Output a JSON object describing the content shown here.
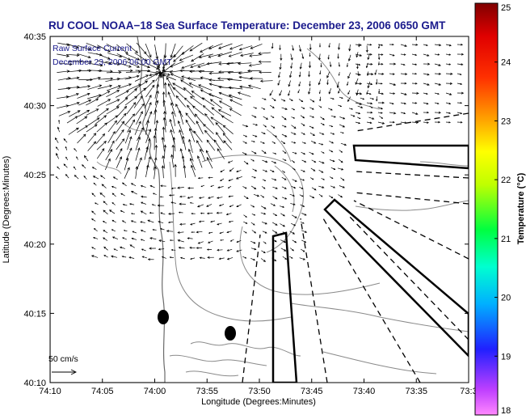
{
  "title": "RU COOL  NOAA−18  Sea Surface Temperature:  December 23, 2006 0650 GMT",
  "legend": {
    "line1": "Raw Surface Current",
    "line2": "December 23, 2006 06:00 GMT"
  },
  "scale_label": "50 cm/s",
  "x_axis": {
    "label": "Longitude (Degrees:Minutes)",
    "ticks": [
      "74:10",
      "74:05",
      "74:00",
      "73:55",
      "73:50",
      "73:45",
      "73:40",
      "73:35",
      "73:3"
    ]
  },
  "y_axis": {
    "label": "Latitude (Degrees:Minutes)",
    "ticks": [
      "40:35",
      "40:30",
      "40:25",
      "40:20",
      "40:15",
      "40:10"
    ]
  },
  "colorbar": {
    "label": "Temperature (°C)",
    "ticks": [
      "25",
      "24",
      "23",
      "22",
      "21",
      "20",
      "19",
      "18"
    ],
    "min": 18,
    "max": 25,
    "colors": [
      "#ff88ff",
      "#c040ff",
      "#2020ff",
      "#00b0ff",
      "#00ffd0",
      "#00ff40",
      "#c0ff00",
      "#ffff00",
      "#ffa000",
      "#ff3000",
      "#e00000",
      "#800000"
    ]
  },
  "chart_data": {
    "type": "map",
    "lon_range": [
      "74:10",
      "73:30"
    ],
    "lat_range": [
      "40:10",
      "40:35"
    ],
    "features": [
      "coastline",
      "bathymetry contours",
      "surface current vectors",
      "shipping lanes",
      "dumping zones"
    ]
  }
}
